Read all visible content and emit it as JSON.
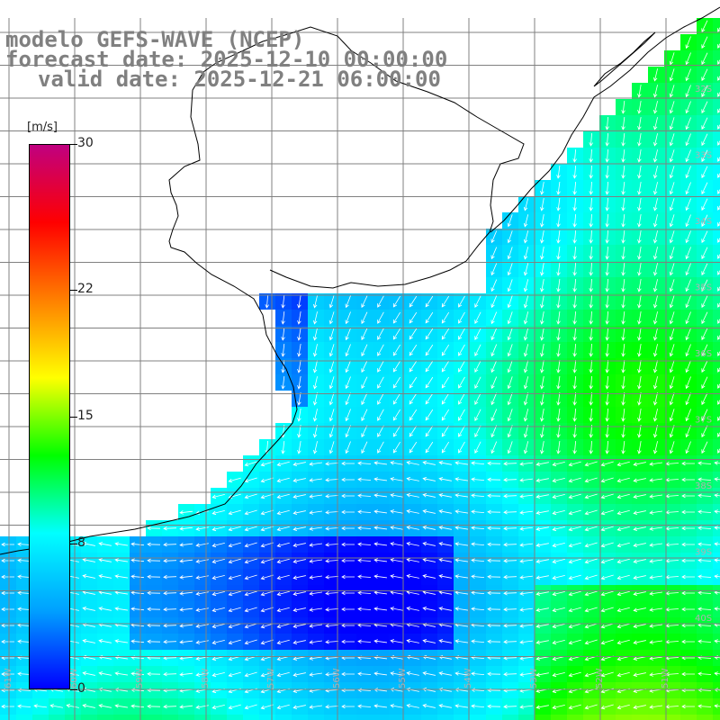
{
  "header": {
    "line1": "modelo GEFS-WAVE (NCEP)",
    "line2": "forecast date: 2025-12-10 00:00:00",
    "line3": "valid date: 2025-12-21 06:00:00"
  },
  "colorbar": {
    "units": "[m/s]",
    "ticks": [
      "30",
      "22",
      "15",
      "8",
      "0"
    ],
    "tick_values": [
      30,
      22,
      15,
      8,
      0
    ],
    "min": 0,
    "max": 30,
    "colors": [
      "#0000ff",
      "#00a0ff",
      "#00ffff",
      "#00ff00",
      "#ffff00",
      "#ff8000",
      "#ff0000",
      "#c00080"
    ]
  },
  "map": {
    "lat_labels": [
      "32S",
      "33S",
      "34S",
      "35S",
      "36S",
      "37S",
      "38S",
      "39S",
      "40S"
    ],
    "lon_labels": [
      "61W",
      "60W",
      "59W",
      "58W",
      "57W",
      "56W",
      "55W",
      "54W",
      "53W",
      "52W",
      "51W"
    ],
    "colors": {
      "land": "#ffffff",
      "coast": "#000000",
      "grid": "#808080",
      "arrow": "#ffffff"
    }
  }
}
